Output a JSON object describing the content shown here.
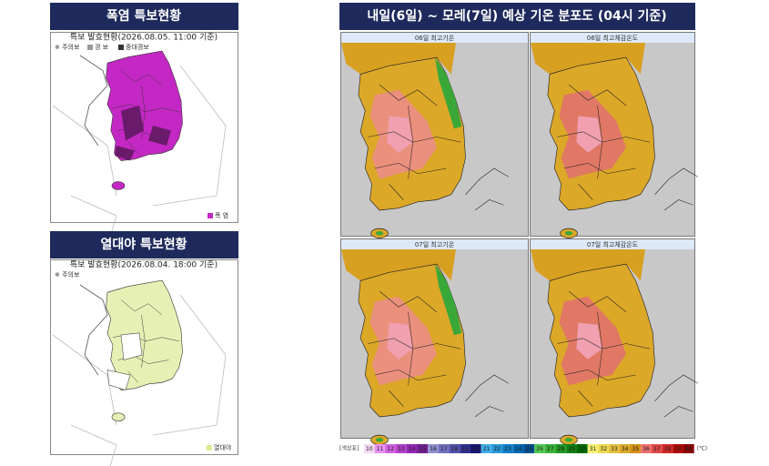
{
  "heat_warning": {
    "title": "폭염 특보현황",
    "status": "특보 발효현황(2026.08.05. 11:00 기준)",
    "legend": [
      "※ 주의보",
      "경 보",
      "중대경보"
    ],
    "map_legend": "폭 염"
  },
  "tropical_night": {
    "title": "열대야 특보현황",
    "status": "특보 발효현황(2026.08.04. 18:00 기준)",
    "legend": [
      "※ 주의보"
    ],
    "map_legend": "열대야"
  },
  "forecast": {
    "title": "내일(6일) ~ 모레(7일) 예상 기온 분포도 (04시 기준)",
    "maps": [
      {
        "title": "06일 최고기온"
      },
      {
        "title": "06일 최고체감온도"
      },
      {
        "title": "07일 최고기온"
      },
      {
        "title": "07일 최고체감온도"
      }
    ],
    "scale": {
      "label": "[색상표]",
      "steps": [
        10,
        11,
        12,
        13,
        14,
        15,
        16,
        17,
        18,
        19,
        20,
        21,
        22,
        23,
        24,
        25,
        26,
        27,
        28,
        29,
        30,
        31,
        32,
        33,
        34,
        35,
        36,
        37,
        38,
        39,
        40
      ],
      "colors": [
        "#f4d8f4",
        "#e890f0",
        "#d060e0",
        "#b040c8",
        "#9028b0",
        "#702090",
        "#9090d0",
        "#7070c0",
        "#5050a8",
        "#303090",
        "#181870",
        "#40b0e8",
        "#2898d8",
        "#1080c8",
        "#0068b0",
        "#005090",
        "#50c850",
        "#38b038",
        "#209820",
        "#108010",
        "#006800",
        "#f4f070",
        "#ecd850",
        "#e4c040",
        "#dca828",
        "#d49018",
        "#f07070",
        "#e04848",
        "#d02828",
        "#b00808",
        "#880000"
      ],
      "unit": "(℃)"
    }
  }
}
